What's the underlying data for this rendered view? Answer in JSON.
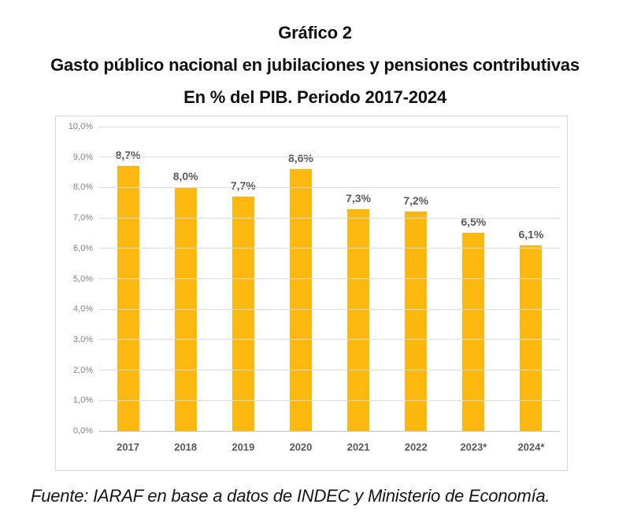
{
  "header": {
    "title": "Gráfico 2",
    "subtitle": "Gasto público nacional en jubilaciones y pensiones contributivas",
    "period_line": "En % del PIB. Periodo 2017-2024"
  },
  "chart_data": {
    "type": "bar",
    "title": "Gasto público nacional en jubilaciones y pensiones contributivas",
    "xlabel": "",
    "ylabel": "",
    "categories": [
      "2017",
      "2018",
      "2019",
      "2020",
      "2021",
      "2022",
      "2023*",
      "2024*"
    ],
    "values": [
      8.7,
      8.0,
      7.7,
      8.6,
      7.3,
      7.2,
      6.5,
      6.1
    ],
    "value_labels": [
      "8,7%",
      "8,0%",
      "7,7%",
      "8,6%",
      "7,3%",
      "7,2%",
      "6,5%",
      "6,1%"
    ],
    "ylim": [
      0,
      10
    ],
    "ytick_step": 1,
    "ytick_labels": [
      "0,0%",
      "1,0%",
      "2,0%",
      "3,0%",
      "4,0%",
      "5,0%",
      "6,0%",
      "7,0%",
      "8,0%",
      "9,0%",
      "10,0%"
    ],
    "grid": true,
    "legend": "none",
    "bar_color": "#fcb80f",
    "data_label_color": "#595959",
    "axis_label_color": "#848484"
  },
  "footer": {
    "source": "Fuente: IARAF en base a datos de INDEC y Ministerio de Economía."
  }
}
